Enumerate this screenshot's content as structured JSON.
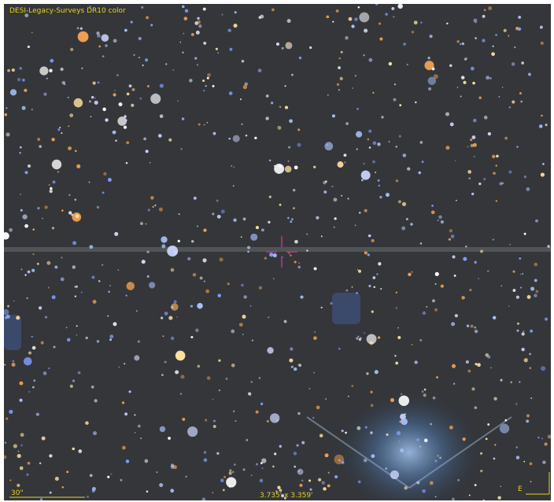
{
  "survey_label": "DESI-Legacy-Surveys DR10 color",
  "scale_bar": "30\"",
  "field_of_view": "3.735' x 3.359'",
  "compass": {
    "east": "E"
  }
}
